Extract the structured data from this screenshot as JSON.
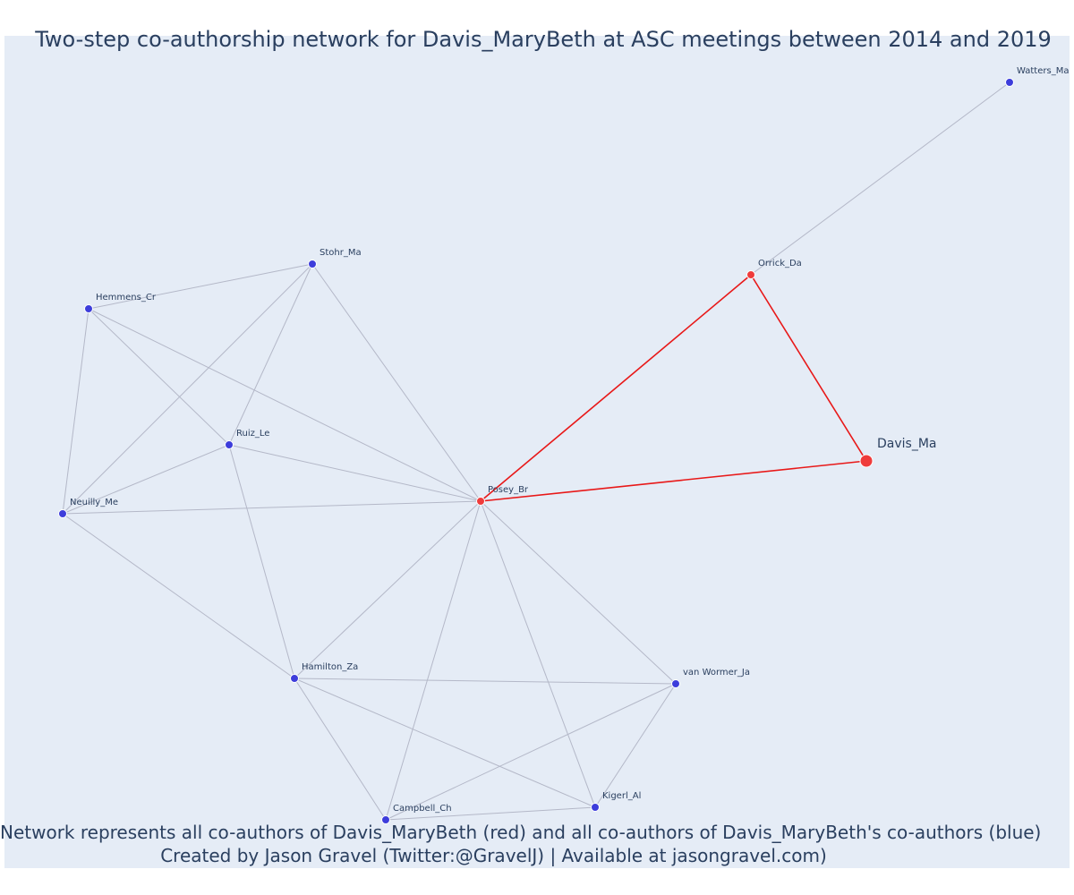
{
  "title": "Two-step co-authorship network for Davis_MaryBeth at ASC meetings between 2014 and 2019",
  "captions": {
    "line1": "Network represents all co-authors of Davis_MaryBeth (red) and all co-authors of Davis_MaryBeth's co-authors (blue)",
    "line2": "Created by Jason Gravel (Twitter:@GravelJ) | Available at jasongravel.com)"
  },
  "colors": {
    "background": "#e5ecf6",
    "focal": "#ef3b3b",
    "coauthor": "#ef3b3b",
    "second_step": "#3d3ddb",
    "focal_edge": "#e81818",
    "edge": "#b4b8c8",
    "text": "#2a3f5f"
  },
  "nodes": [
    {
      "id": "davis",
      "label": "Davis_Ma",
      "group": "focal"
    },
    {
      "id": "posey",
      "label": "Posey_Br",
      "group": "coauthor"
    },
    {
      "id": "orrick",
      "label": "Orrick_Da",
      "group": "coauthor"
    },
    {
      "id": "watters",
      "label": "Watters_Ma",
      "group": "second_step"
    },
    {
      "id": "stohr",
      "label": "Stohr_Ma",
      "group": "second_step"
    },
    {
      "id": "hemmens",
      "label": "Hemmens_Cr",
      "group": "second_step"
    },
    {
      "id": "ruiz",
      "label": "Ruiz_Le",
      "group": "second_step"
    },
    {
      "id": "neuilly",
      "label": "Neuilly_Me",
      "group": "second_step"
    },
    {
      "id": "hamilton",
      "label": "Hamilton_Za",
      "group": "second_step"
    },
    {
      "id": "vanwormer",
      "label": "van Wormer_Ja",
      "group": "second_step"
    },
    {
      "id": "kigerl",
      "label": "Kigerl_Al",
      "group": "second_step"
    },
    {
      "id": "campbell",
      "label": "Campbell_Ch",
      "group": "second_step"
    }
  ],
  "edges": [
    [
      "davis",
      "orrick"
    ],
    [
      "davis",
      "posey"
    ],
    [
      "orrick",
      "posey"
    ],
    [
      "orrick",
      "watters"
    ],
    [
      "posey",
      "stohr"
    ],
    [
      "posey",
      "hemmens"
    ],
    [
      "posey",
      "ruiz"
    ],
    [
      "posey",
      "neuilly"
    ],
    [
      "posey",
      "hamilton"
    ],
    [
      "posey",
      "vanwormer"
    ],
    [
      "posey",
      "kigerl"
    ],
    [
      "posey",
      "campbell"
    ],
    [
      "stohr",
      "hemmens"
    ],
    [
      "stohr",
      "ruiz"
    ],
    [
      "stohr",
      "neuilly"
    ],
    [
      "hemmens",
      "neuilly"
    ],
    [
      "hemmens",
      "ruiz"
    ],
    [
      "ruiz",
      "neuilly"
    ],
    [
      "ruiz",
      "hamilton"
    ],
    [
      "neuilly",
      "hamilton"
    ],
    [
      "hamilton",
      "vanwormer"
    ],
    [
      "hamilton",
      "kigerl"
    ],
    [
      "hamilton",
      "campbell"
    ],
    [
      "vanwormer",
      "campbell"
    ],
    [
      "vanwormer",
      "kigerl"
    ],
    [
      "campbell",
      "kigerl"
    ]
  ]
}
